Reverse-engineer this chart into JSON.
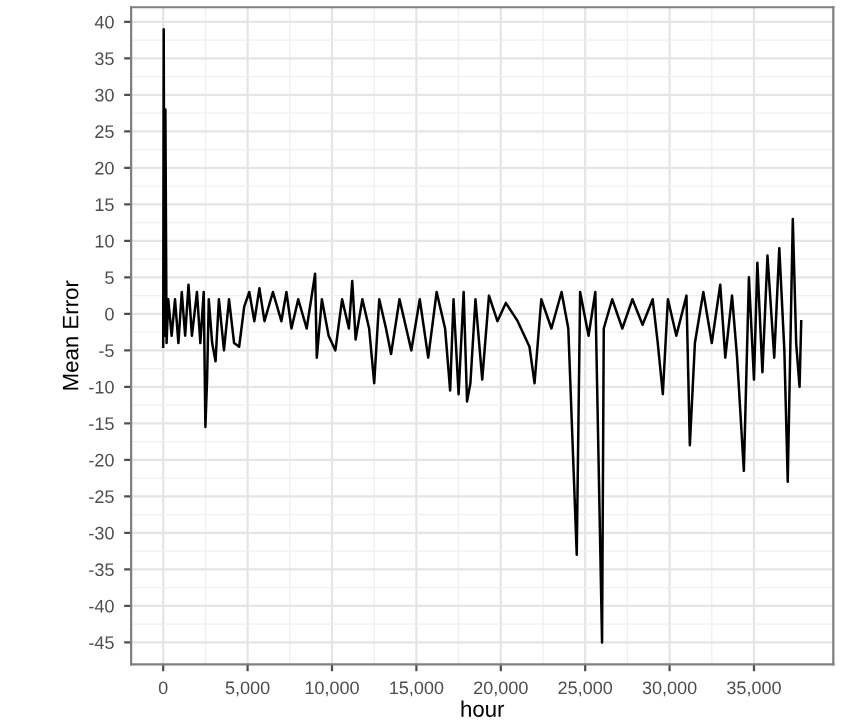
{
  "chart_data": {
    "type": "line",
    "xlabel": "hour",
    "ylabel": "Mean Error",
    "color": "#000000",
    "grid": true,
    "legend": false,
    "xlim": [
      -1900,
      39700
    ],
    "ylim": [
      -48,
      42
    ],
    "xticks": [
      {
        "value": 0,
        "label": "0"
      },
      {
        "value": 5000,
        "label": "5,000"
      },
      {
        "value": 10000,
        "label": "10,000"
      },
      {
        "value": 15000,
        "label": "15,000"
      },
      {
        "value": 20000,
        "label": "20,000"
      },
      {
        "value": 25000,
        "label": "25,000"
      },
      {
        "value": 30000,
        "label": "30,000"
      },
      {
        "value": 35000,
        "label": "35,000"
      }
    ],
    "yticks": [
      -45,
      -40,
      -35,
      -30,
      -25,
      -20,
      -15,
      -10,
      -5,
      0,
      5,
      10,
      15,
      20,
      25,
      30,
      35,
      40
    ],
    "x": [
      0,
      30,
      80,
      130,
      200,
      300,
      500,
      700,
      900,
      1100,
      1300,
      1500,
      1700,
      2000,
      2200,
      2400,
      2500,
      2600,
      2700,
      2900,
      3100,
      3300,
      3600,
      3900,
      4200,
      4500,
      4800,
      5100,
      5400,
      5700,
      6000,
      6500,
      7000,
      7300,
      7600,
      8000,
      8500,
      9000,
      9100,
      9400,
      9800,
      10200,
      10600,
      11000,
      11200,
      11400,
      11800,
      12200,
      12500,
      12800,
      13200,
      13500,
      14000,
      14400,
      14700,
      15200,
      15700,
      16200,
      16700,
      17000,
      17200,
      17500,
      17800,
      18000,
      18200,
      18500,
      18900,
      19300,
      19800,
      20300,
      21000,
      21700,
      22000,
      22400,
      23000,
      23600,
      24000,
      24500,
      24700,
      25200,
      25600,
      26000,
      26100,
      26600,
      27200,
      27800,
      28400,
      29000,
      29300,
      29600,
      29900,
      30400,
      31000,
      31200,
      31500,
      32000,
      32500,
      33000,
      33300,
      33700,
      34000,
      34400,
      34700,
      35000,
      35200,
      35500,
      35800,
      36200,
      36500,
      36800,
      37000,
      37300,
      37500,
      37700,
      37800
    ],
    "values": [
      -4.5,
      39,
      -3,
      28,
      -4,
      2,
      -3,
      2,
      -4,
      3,
      -3,
      4,
      -3,
      3,
      -4,
      3,
      -15.5,
      -9,
      2,
      -4,
      -6.5,
      2,
      -5,
      2,
      -4,
      -4.5,
      1,
      3,
      -1,
      3.5,
      -1,
      3,
      -1,
      3,
      -2,
      2,
      -2,
      5.5,
      -6,
      2,
      -3,
      -5,
      2,
      -2,
      4.5,
      -3.5,
      2,
      -2,
      -9.5,
      2,
      -2,
      -5.5,
      2,
      -2,
      -5,
      2,
      -6,
      3,
      -2,
      -10.5,
      2,
      -11,
      3,
      -12,
      -9.5,
      2,
      -9,
      2.5,
      -1,
      1.5,
      -1,
      -4.5,
      -9.5,
      2,
      -2,
      3,
      -2,
      -33,
      3,
      -3,
      3,
      -45,
      -2,
      2,
      -2,
      2,
      -1.5,
      2,
      -4,
      -11,
      2,
      -3,
      2.5,
      -18,
      -4,
      3,
      -4,
      4,
      -6,
      2.5,
      -6,
      -21.5,
      5,
      -9,
      7,
      -8,
      8,
      -6,
      9,
      -5,
      -23,
      13,
      -4,
      -10,
      -1
    ]
  }
}
